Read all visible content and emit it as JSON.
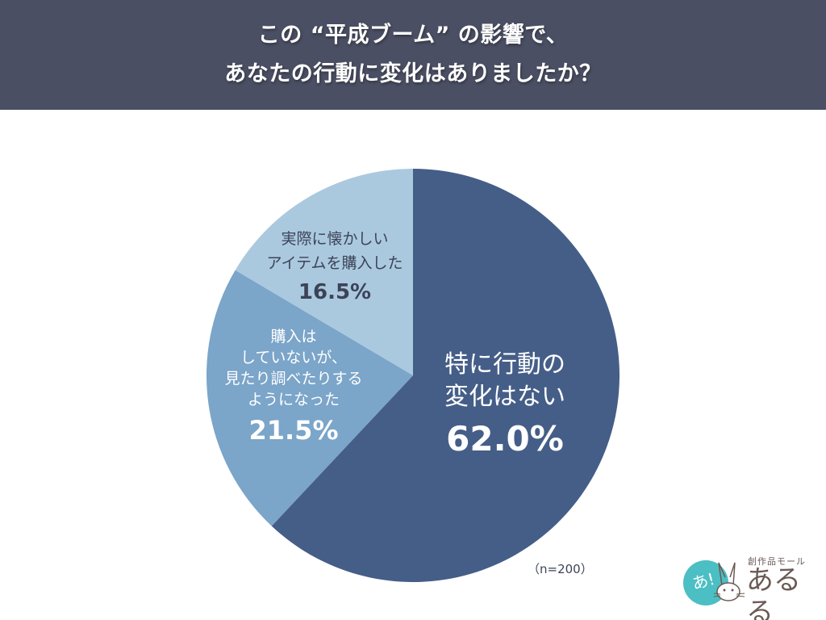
{
  "header": {
    "title_line1": "この “平成ブーム” の影響で、",
    "title_line2": "あなたの行動に変化はありましたか？",
    "bg_color": "#4b4f63"
  },
  "chart_data": {
    "type": "pie",
    "title": "この “平成ブーム” の影響で、あなたの行動に変化はありましたか？",
    "categories": [
      "特に行動の変化はない",
      "購入はしていないが、見たり調べたりするようになった",
      "実際に懐かしいアイテムを購入した"
    ],
    "values": [
      62.0,
      21.5,
      16.5
    ],
    "unit": "%",
    "colors": [
      "#455e88",
      "#7ba5c9",
      "#aac9df"
    ],
    "start_angle": "12 o'clock, clockwise",
    "sample_size": "n=200",
    "legend": "none (labels inside slices)"
  },
  "labels": {
    "slice_main": {
      "line1": "特に行動の",
      "line2": "変化はない",
      "pct": "62.0%"
    },
    "slice_mid": {
      "line1": "購入は",
      "line2": "していないが、",
      "line3": "見たり調べたりする",
      "line4": "ようになった",
      "pct": "21.5%"
    },
    "slice_light": {
      "line1": "実際に懐かしい",
      "line2": "アイテムを購入した",
      "pct": "16.5%"
    }
  },
  "footer": {
    "sample_note": "（n=200）"
  },
  "logo": {
    "badge_text": "あ!",
    "sub_text": "創作品モール",
    "main_text": "あるる",
    "badge_color": "#4bbfc3",
    "text_color": "#6a5a55"
  }
}
